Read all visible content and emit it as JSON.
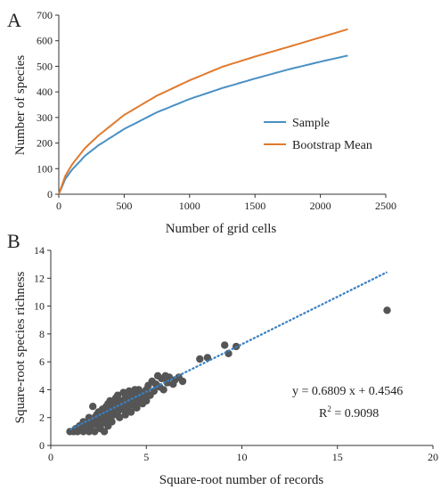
{
  "chart_data": [
    {
      "type": "line",
      "panel_label": "A",
      "xlabel": "Number of grid cells",
      "ylabel": "Number of species",
      "xlim": [
        0,
        2500
      ],
      "ylim": [
        0,
        700
      ],
      "xticks": [
        0,
        500,
        1000,
        1500,
        2000,
        2500
      ],
      "yticks": [
        0,
        100,
        200,
        300,
        400,
        500,
        600,
        700
      ],
      "grid": false,
      "legend_position": "right",
      "series": [
        {
          "name": "Sample",
          "color": "#4a90c4",
          "x": [
            0,
            50,
            100,
            200,
            300,
            500,
            750,
            1000,
            1250,
            1500,
            1750,
            2000,
            2210
          ],
          "y": [
            0,
            60,
            95,
            150,
            190,
            255,
            320,
            372,
            415,
            452,
            487,
            518,
            542
          ]
        },
        {
          "name": "Bootstrap Mean",
          "color": "#e07a2e",
          "x": [
            0,
            50,
            100,
            200,
            300,
            500,
            750,
            1000,
            1250,
            1500,
            1750,
            2000,
            2210
          ],
          "y": [
            0,
            72,
            115,
            180,
            228,
            310,
            385,
            445,
            498,
            538,
            575,
            613,
            645
          ]
        }
      ]
    },
    {
      "type": "scatter",
      "panel_label": "B",
      "xlabel": "Square-root number of records",
      "ylabel": "Square-root species richness",
      "xlim": [
        0,
        20
      ],
      "ylim": [
        0,
        14
      ],
      "xticks": [
        0,
        5,
        10,
        15,
        20
      ],
      "yticks": [
        0,
        2,
        4,
        6,
        8,
        10,
        12,
        14
      ],
      "grid": false,
      "equation": "y = 0.6809 x + 0.4546",
      "r2_prefix": "R",
      "r2_sup": "2",
      "r2_value": " = 0.9098",
      "trendline": {
        "slope": 0.6809,
        "intercept": 0.4546,
        "x_range": [
          1,
          17.6
        ],
        "color": "#3a7fc0"
      },
      "point_color": "#555555",
      "points": [
        [
          1,
          1
        ],
        [
          1.2,
          1
        ],
        [
          1.3,
          1.2
        ],
        [
          1.4,
          1
        ],
        [
          1.5,
          1.4
        ],
        [
          1.6,
          1.1
        ],
        [
          1.7,
          1.7
        ],
        [
          1.7,
          1
        ],
        [
          1.8,
          1.3
        ],
        [
          1.9,
          1.5
        ],
        [
          2,
          1
        ],
        [
          2,
          1.7
        ],
        [
          2,
          2
        ],
        [
          2.1,
          1.4
        ],
        [
          2.2,
          1.7
        ],
        [
          2.2,
          2.8
        ],
        [
          2.3,
          1
        ],
        [
          2.3,
          2
        ],
        [
          2.4,
          1.5
        ],
        [
          2.4,
          2.2
        ],
        [
          2.5,
          1.7
        ],
        [
          2.5,
          2.4
        ],
        [
          2.6,
          1.2
        ],
        [
          2.6,
          2
        ],
        [
          2.7,
          2.6
        ],
        [
          2.7,
          1.6
        ],
        [
          2.8,
          2.2
        ],
        [
          2.8,
          1
        ],
        [
          2.9,
          2.8
        ],
        [
          2.9,
          1.8
        ],
        [
          3,
          2.4
        ],
        [
          3,
          3
        ],
        [
          3,
          1.4
        ],
        [
          3.1,
          2
        ],
        [
          3.1,
          3.2
        ],
        [
          3.2,
          2.6
        ],
        [
          3.2,
          1.7
        ],
        [
          3.3,
          3
        ],
        [
          3.3,
          2.2
        ],
        [
          3.4,
          2.8
        ],
        [
          3.4,
          3.4
        ],
        [
          3.5,
          2.4
        ],
        [
          3.5,
          3.6
        ],
        [
          3.6,
          2
        ],
        [
          3.6,
          3
        ],
        [
          3.7,
          3.2
        ],
        [
          3.7,
          2.6
        ],
        [
          3.8,
          3.8
        ],
        [
          3.8,
          2.8
        ],
        [
          3.9,
          3.4
        ],
        [
          3.9,
          2.2
        ],
        [
          4,
          3
        ],
        [
          4,
          3.6
        ],
        [
          4,
          2.6
        ],
        [
          4.1,
          3.9
        ],
        [
          4.1,
          3.2
        ],
        [
          4.2,
          2.4
        ],
        [
          4.2,
          3.5
        ],
        [
          4.3,
          3.8
        ],
        [
          4.3,
          2.9
        ],
        [
          4.4,
          3.3
        ],
        [
          4.4,
          4
        ],
        [
          4.5,
          3.6
        ],
        [
          4.5,
          2.7
        ],
        [
          4.6,
          3.1
        ],
        [
          4.6,
          4
        ],
        [
          4.7,
          3.4
        ],
        [
          4.8,
          3.8
        ],
        [
          4.8,
          3
        ],
        [
          4.9,
          3.6
        ],
        [
          5,
          4
        ],
        [
          5,
          3.2
        ],
        [
          5.1,
          4.3
        ],
        [
          5.2,
          3.6
        ],
        [
          5.3,
          4.6
        ],
        [
          5.4,
          3.9
        ],
        [
          5.5,
          4.4
        ],
        [
          5.6,
          5
        ],
        [
          5.7,
          4.2
        ],
        [
          5.8,
          4.8
        ],
        [
          5.9,
          4
        ],
        [
          6,
          5
        ],
        [
          6.1,
          4.5
        ],
        [
          6.2,
          4.9
        ],
        [
          6.4,
          4.4
        ],
        [
          6.5,
          4.7
        ],
        [
          6.7,
          4.9
        ],
        [
          6.9,
          4.6
        ],
        [
          7.8,
          6.2
        ],
        [
          8.2,
          6.3
        ],
        [
          9.1,
          7.2
        ],
        [
          9.3,
          6.6
        ],
        [
          9.7,
          7.1
        ],
        [
          17.6,
          9.7
        ]
      ]
    }
  ]
}
